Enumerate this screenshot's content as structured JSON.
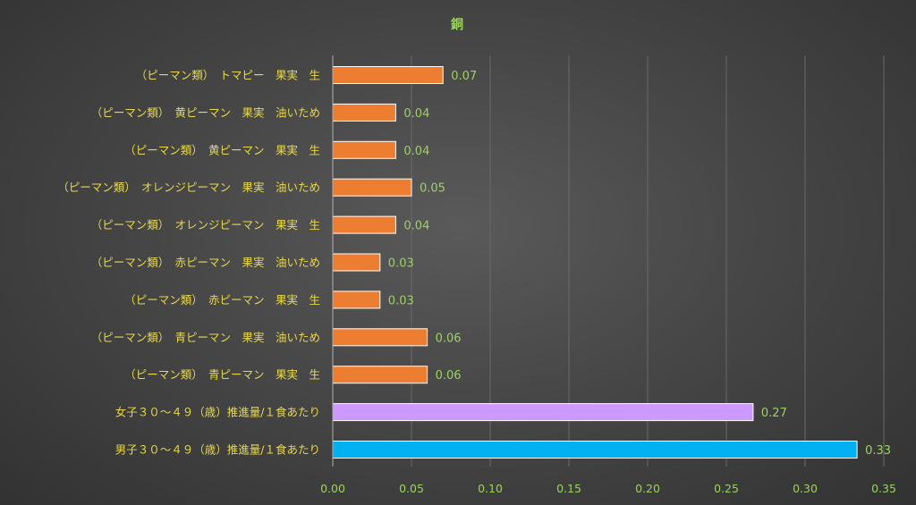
{
  "colors": {
    "title": "#9bd35b",
    "category_text": "#e8d84a",
    "value_text": "#9bd35b",
    "tick_text": "#9bd35b",
    "gridline": "#6a6a6a",
    "axis_line": "#b0b0b0",
    "bar_outline": "#ffffff"
  },
  "chart_data": {
    "type": "bar",
    "orientation": "horizontal",
    "title": "銅",
    "categories": [
      "（ピーマン類）　トマピー　果実　生",
      "（ピーマン類）　黄ピーマン　果実　油いため",
      "（ピーマン類）　黄ピーマン　果実　生",
      "（ピーマン類）　オレンジピーマン　果実　油いため",
      "（ピーマン類）　オレンジピーマン　果実　生",
      "（ピーマン類）　赤ピーマン　果実　油いため",
      "（ピーマン類）　赤ピーマン　果実　生",
      "（ピーマン類）　青ピーマン　果実　油いため",
      "（ピーマン類）　青ピーマン　果実　生",
      "女子３０～４９（歳）推進量/１食あたり",
      "男子３０～４９（歳）推進量/１食あたり"
    ],
    "values": [
      0.07,
      0.04,
      0.04,
      0.05,
      0.04,
      0.03,
      0.03,
      0.06,
      0.06,
      0.267,
      0.333
    ],
    "value_labels": [
      "0.07",
      "0.04",
      "0.04",
      "0.05",
      "0.04",
      "0.03",
      "0.03",
      "0.06",
      "0.06",
      "0.27",
      "0.33"
    ],
    "bar_colors": [
      "#ed7d31",
      "#ed7d31",
      "#ed7d31",
      "#ed7d31",
      "#ed7d31",
      "#ed7d31",
      "#ed7d31",
      "#ed7d31",
      "#ed7d31",
      "#cc99ff",
      "#00b0f0"
    ],
    "xlim": [
      0,
      0.35
    ],
    "x_ticks": [
      0,
      0.05,
      0.1,
      0.15,
      0.2,
      0.25,
      0.3,
      0.35
    ],
    "x_tick_labels": [
      "0.00",
      "0.05",
      "0.10",
      "0.15",
      "0.20",
      "0.25",
      "0.30",
      "0.35"
    ],
    "xlabel": "",
    "ylabel": "",
    "grid": "vertical",
    "legend": "none"
  }
}
